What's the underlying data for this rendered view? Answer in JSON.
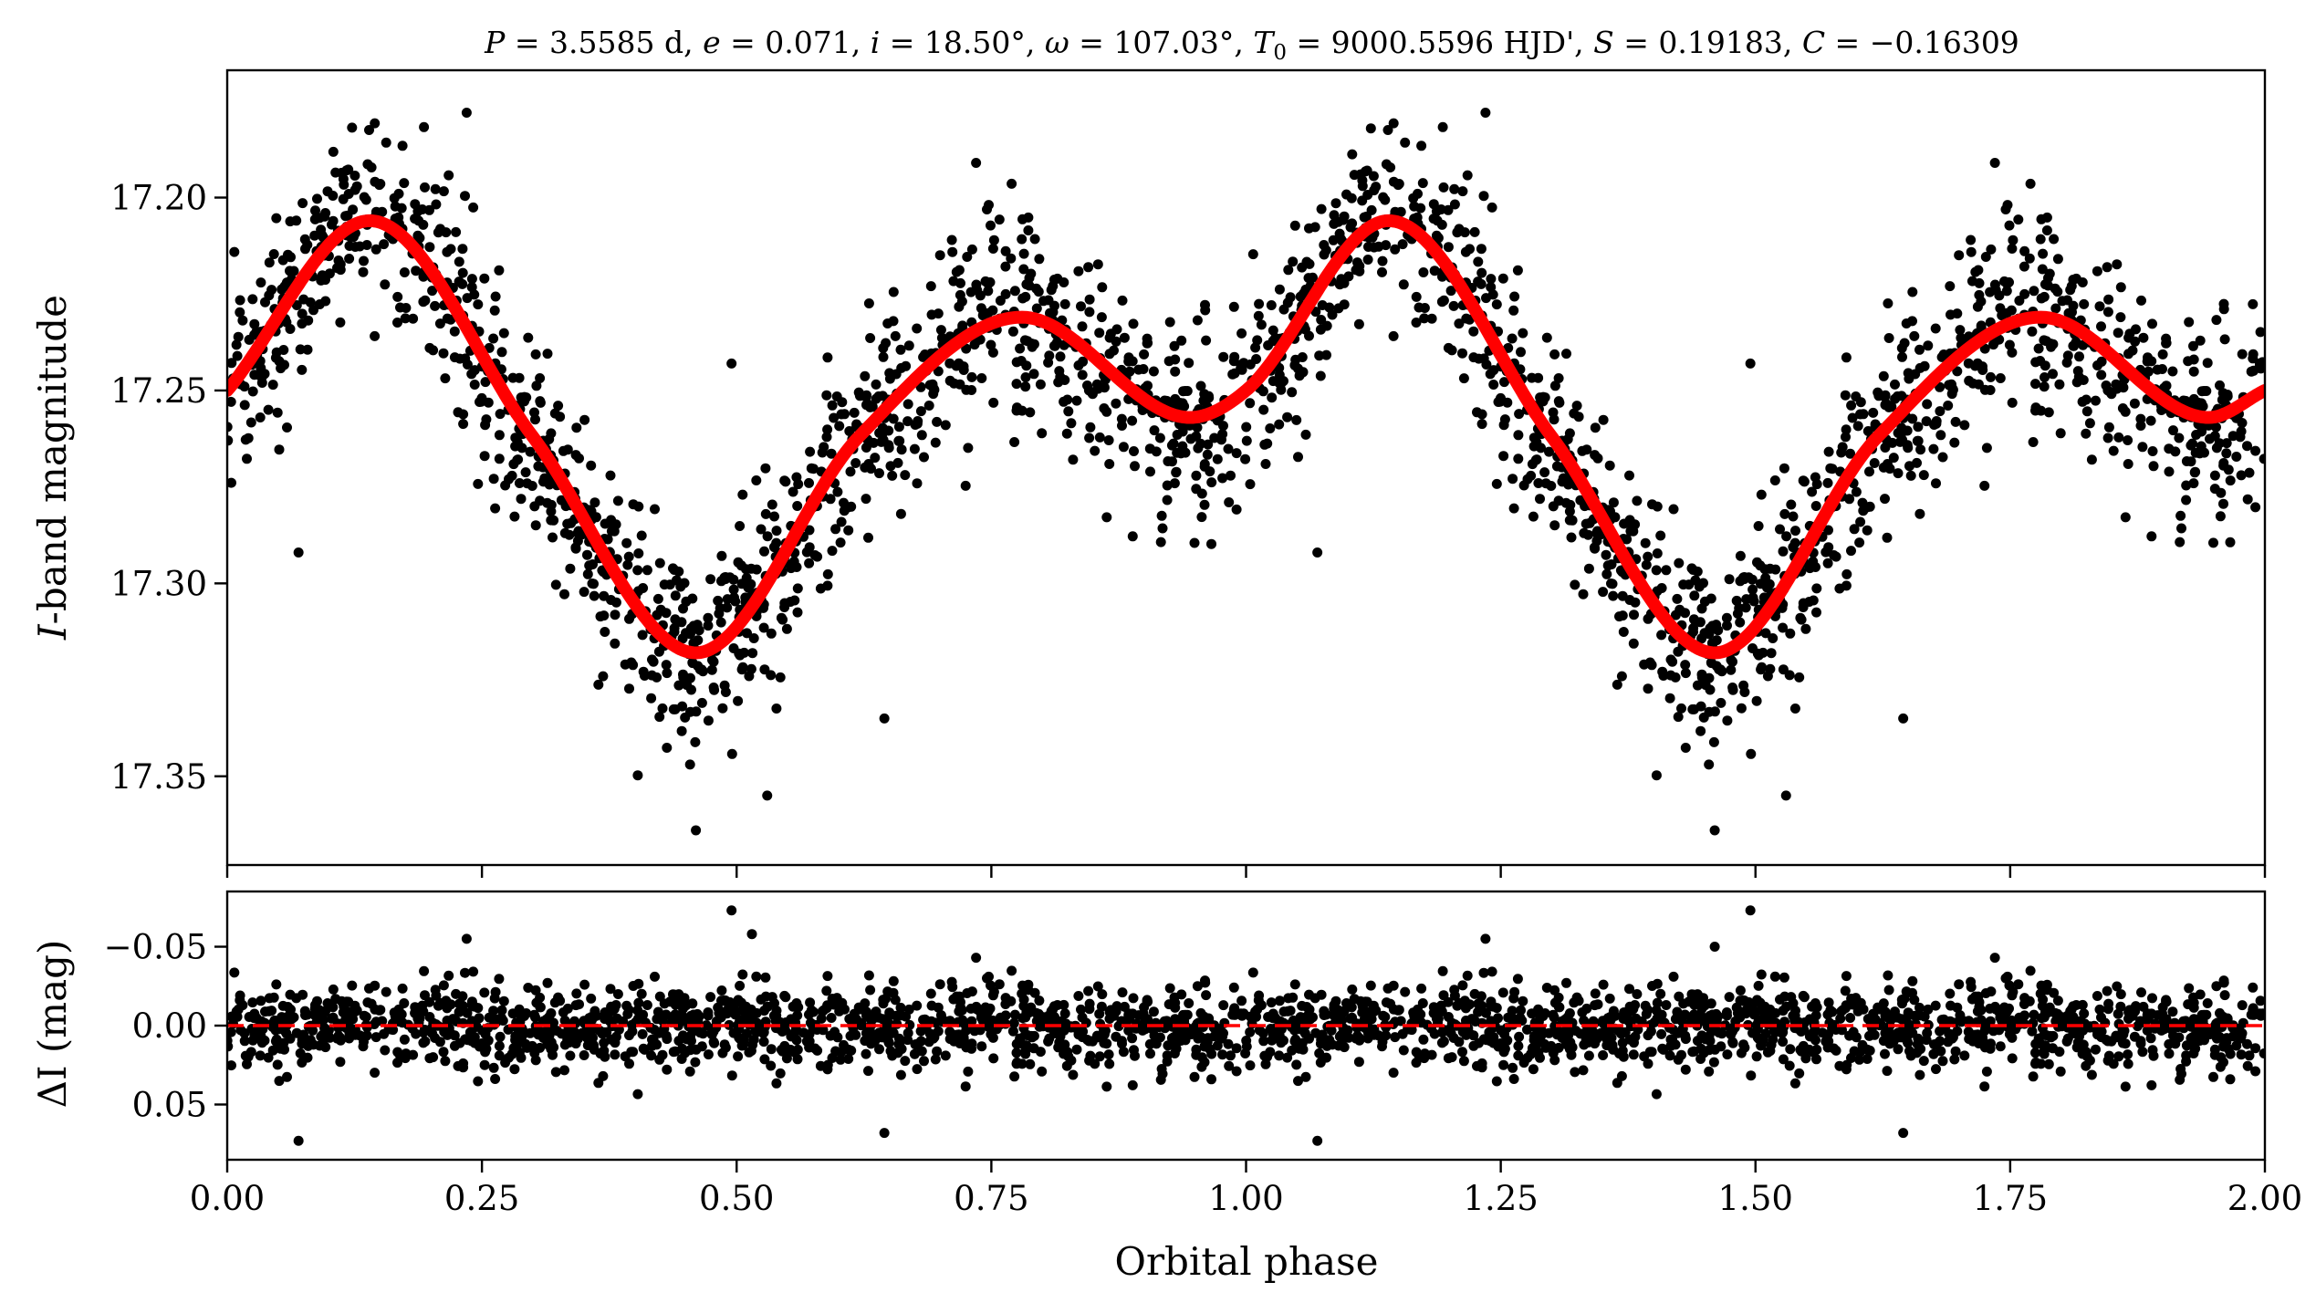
{
  "chart_data": [
    {
      "type": "scatter",
      "panel": "top",
      "title": "P = 3.5585 d, e = 0.071, i = 18.50°, ω = 107.03°, T0 = 9000.5596 HJD', S = 0.19183, C = −0.16309",
      "title_parts": {
        "P_sym": "P",
        "P_val": " = 3.5585 d, ",
        "e_sym": "e",
        "e_val": " = 0.071, ",
        "i_sym": "i",
        "i_val": " = 18.50°, ",
        "w_sym": "ω",
        "w_val": " = 107.03°, ",
        "T_sym": "T",
        "T_sub": "0",
        "T_val": " = 9000.5596 HJD', ",
        "S_sym": "S",
        "S_val": " = 0.19183, ",
        "C_sym": "C",
        "C_val": " = −0.16309"
      },
      "ylabel_italic": "I",
      "ylabel_rest": "-band magnitude",
      "xlim": [
        0.0,
        2.0
      ],
      "ylim": [
        17.167,
        17.373
      ],
      "y_inverted": true,
      "yticks": [
        17.2,
        17.25,
        17.3,
        17.35
      ],
      "ytick_labels": [
        "17.20",
        "17.25",
        "17.30",
        "17.35"
      ],
      "model_curve": {
        "color": "#ff0000",
        "description_points": [
          {
            "x": 0.0,
            "y": 17.25
          },
          {
            "x": 0.14,
            "y": 17.206
          },
          {
            "x": 0.3,
            "y": 17.262
          },
          {
            "x": 0.46,
            "y": 17.318
          },
          {
            "x": 0.62,
            "y": 17.262
          },
          {
            "x": 0.78,
            "y": 17.231
          },
          {
            "x": 0.945,
            "y": 17.257
          },
          {
            "x": 1.0,
            "y": 17.25
          },
          {
            "x": 1.14,
            "y": 17.206
          },
          {
            "x": 1.3,
            "y": 17.262
          },
          {
            "x": 1.46,
            "y": 17.318
          },
          {
            "x": 1.62,
            "y": 17.262
          },
          {
            "x": 1.78,
            "y": 17.231
          },
          {
            "x": 1.945,
            "y": 17.257
          },
          {
            "x": 2.0,
            "y": 17.25
          }
        ]
      },
      "scatter_noise_sigma": 0.013,
      "point_color": "#000000",
      "notable_points": [
        {
          "x": 0.07,
          "y": 17.292
        },
        {
          "x": 0.235,
          "y": 17.178
        },
        {
          "x": 0.495,
          "y": 17.243
        },
        {
          "x": 0.46,
          "y": 17.364
        },
        {
          "x": 0.53,
          "y": 17.355
        },
        {
          "x": 0.645,
          "y": 17.335
        },
        {
          "x": 0.735,
          "y": 17.191
        },
        {
          "x": 1.07,
          "y": 17.292
        },
        {
          "x": 1.235,
          "y": 17.178
        },
        {
          "x": 1.495,
          "y": 17.243
        },
        {
          "x": 1.46,
          "y": 17.364
        },
        {
          "x": 1.53,
          "y": 17.355
        },
        {
          "x": 1.645,
          "y": 17.335
        },
        {
          "x": 1.735,
          "y": 17.191
        }
      ]
    },
    {
      "type": "scatter",
      "panel": "bottom",
      "ylabel_sym": "ΔI",
      "ylabel_rest": " (mag)",
      "xlabel": "Orbital phase",
      "xlim": [
        0.0,
        2.0
      ],
      "ylim": [
        -0.085,
        0.085
      ],
      "y_inverted": true,
      "yticks": [
        -0.05,
        0.0,
        0.05
      ],
      "ytick_labels": [
        "−0.05",
        "0.00",
        "0.05"
      ],
      "xticks": [
        0.0,
        0.25,
        0.5,
        0.75,
        1.0,
        1.25,
        1.5,
        1.75,
        2.0
      ],
      "xtick_labels": [
        "0.00",
        "0.25",
        "0.50",
        "0.75",
        "1.00",
        "1.25",
        "1.50",
        "1.75",
        "2.00"
      ],
      "zero_line": {
        "y": 0.0,
        "color": "#ff0000",
        "style": "dashed"
      },
      "residual_sigma": 0.013,
      "point_color": "#000000",
      "notable_points": [
        {
          "x": 0.07,
          "y": 0.073
        },
        {
          "x": 0.235,
          "y": -0.055
        },
        {
          "x": 0.495,
          "y": -0.073
        },
        {
          "x": 0.515,
          "y": -0.058
        },
        {
          "x": 0.645,
          "y": 0.068
        },
        {
          "x": 0.735,
          "y": -0.043
        },
        {
          "x": 1.07,
          "y": 0.073
        },
        {
          "x": 1.235,
          "y": -0.055
        },
        {
          "x": 1.495,
          "y": -0.073
        },
        {
          "x": 1.46,
          "y": -0.05
        },
        {
          "x": 1.645,
          "y": 0.068
        },
        {
          "x": 1.735,
          "y": -0.043
        }
      ]
    }
  ]
}
